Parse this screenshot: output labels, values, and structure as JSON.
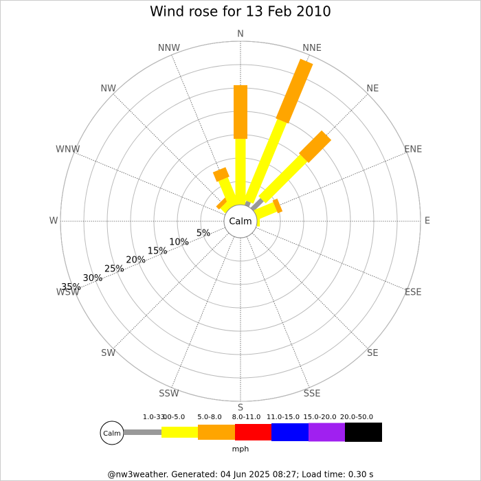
{
  "chart_data": {
    "type": "wind_rose",
    "title": "Wind rose for 13 Feb 2010",
    "categories": [
      "N",
      "NNE",
      "NE",
      "ENE",
      "E",
      "ESE",
      "SE",
      "SSE",
      "S",
      "SSW",
      "SW",
      "WSW",
      "W",
      "WNW",
      "NW",
      "NNW"
    ],
    "calm_label": "Calm",
    "unit": "mph",
    "footer": "@nw3weather. Generated: 04 Jun 2025 08:27; Load time: 0.30 s",
    "rlim": [
      0,
      35
    ],
    "rticks": [
      {
        "value": 5,
        "label": "5%"
      },
      {
        "value": 10,
        "label": "10%"
      },
      {
        "value": 15,
        "label": "15%"
      },
      {
        "value": 20,
        "label": "20%"
      },
      {
        "value": 25,
        "label": "25%"
      },
      {
        "value": 30,
        "label": "30%"
      },
      {
        "value": 35,
        "label": "35%"
      }
    ],
    "series": [
      {
        "name": "1.0-3.0",
        "color": "#999999",
        "values": [
          0,
          1,
          3,
          0,
          0,
          0,
          0,
          0,
          0,
          0,
          0,
          0,
          0,
          0,
          0,
          0
        ]
      },
      {
        "name": "3.0-5.0",
        "color": "#ffff00",
        "values": [
          14.1,
          18.7,
          12.6,
          4.5,
          0.6,
          0,
          0,
          0,
          0,
          0,
          0,
          0,
          0,
          0,
          1.5,
          6.2
        ]
      },
      {
        "name": "5.0-8.0",
        "color": "#ffa500",
        "values": [
          11.5,
          13.8,
          6.9,
          1.1,
          0,
          0,
          0,
          0,
          0,
          0,
          0,
          0,
          0,
          0,
          0.9,
          2.2
        ]
      },
      {
        "name": "8.0-11.0",
        "color": "#ff0000",
        "values": [
          0,
          0,
          0,
          0,
          0,
          0,
          0,
          0,
          0,
          0,
          0,
          0,
          0,
          0,
          0,
          0
        ]
      },
      {
        "name": "11.0-15.0",
        "color": "#0000ff",
        "values": [
          0,
          0,
          0,
          0,
          0,
          0,
          0,
          0,
          0,
          0,
          0,
          0,
          0,
          0,
          0,
          0
        ]
      },
      {
        "name": "15.0-20.0",
        "color": "#a020f0",
        "values": [
          0,
          0,
          0,
          0,
          0,
          0,
          0,
          0,
          0,
          0,
          0,
          0,
          0,
          0,
          0,
          0
        ]
      },
      {
        "name": "20.0-50.0",
        "color": "#000000",
        "values": [
          0,
          0,
          0,
          0,
          0,
          0,
          0,
          0,
          0,
          0,
          0,
          0,
          0,
          0,
          0,
          0
        ]
      }
    ]
  }
}
